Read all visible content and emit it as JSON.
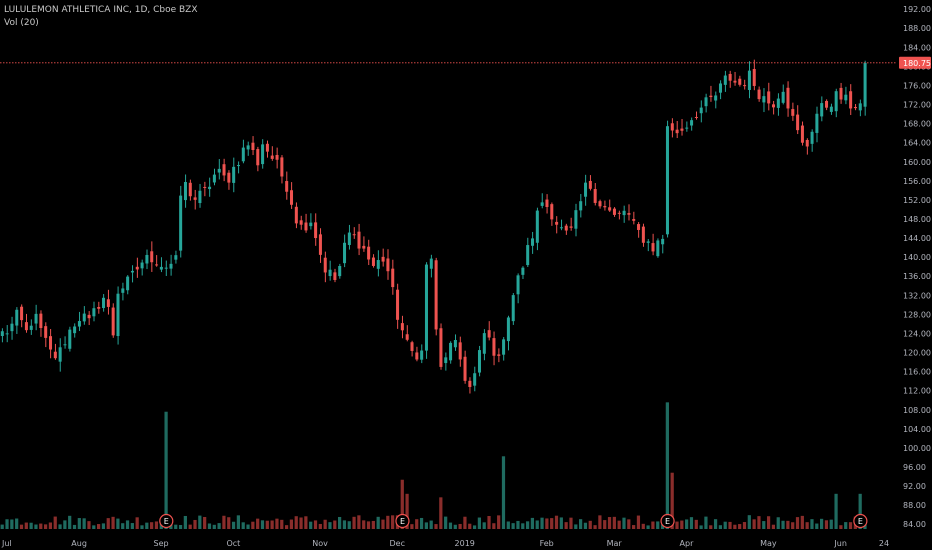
{
  "legend": {
    "symbol_line": "LULULEMON ATHLETICA INC, 1D, Cboe BZX",
    "volume_line": "Vol (20)"
  },
  "colors": {
    "background": "#000000",
    "up": "#26a69a",
    "down": "#ef5350",
    "up_volume": "#1f6b60",
    "down_volume": "#8a2d2b",
    "last_price_line": "#ef5350",
    "last_price_tag_bg": "#ef5350",
    "axis_text": "#b2b5be",
    "earnings_marker": "#ef5350"
  },
  "chart_data": {
    "type": "candlestick",
    "title": "LULULEMON ATHLETICA INC, 1D, Cboe BZX",
    "indicators": [
      "Vol (20)"
    ],
    "last_price": 180.75,
    "last_price_label": "180.75",
    "price_axis_ticks": [
      "84.00",
      "88.00",
      "92.00",
      "96.00",
      "100.00",
      "104.00",
      "108.00",
      "112.00",
      "116.00",
      "120.00",
      "124.00",
      "128.00",
      "132.00",
      "136.00",
      "140.00",
      "144.00",
      "148.00",
      "152.00",
      "156.00",
      "160.00",
      "164.00",
      "168.00",
      "172.00",
      "176.00",
      "180.00",
      "184.00",
      "188.00",
      "192.00"
    ],
    "ylim": [
      83,
      193.5
    ],
    "time_axis_labels": [
      "Jul",
      "Aug",
      "Sep",
      "Oct",
      "Nov",
      "Dec",
      "2019",
      "Feb",
      "Mar",
      "Apr",
      "May",
      "Jun",
      "24"
    ],
    "earnings_marker_label": "E",
    "grid": false,
    "segments": [
      {
        "from": 0,
        "to": 24,
        "open": 124,
        "close": 124,
        "points": [
          125,
          128,
          124,
          128,
          124,
          120,
          119,
          123,
          126,
          128,
          126,
          130,
          132
        ]
      },
      {
        "from": 24,
        "to": 37,
        "open": 133,
        "close": 139,
        "points": [
          135,
          139,
          140,
          138
        ]
      },
      {
        "from": 37,
        "to": 38,
        "open": 153,
        "close": 153,
        "points": []
      },
      {
        "from": 38,
        "to": 54,
        "open": 155,
        "close": 160,
        "points": [
          152,
          154,
          158,
          156,
          160,
          164
        ]
      },
      {
        "from": 54,
        "to": 88,
        "open": 164,
        "close": 120,
        "points": [
          160,
          155,
          146,
          148,
          138,
          135,
          145,
          143,
          138,
          140,
          128,
          120
        ]
      },
      {
        "from": 88,
        "to": 89,
        "open": 138,
        "close": 138,
        "points": []
      },
      {
        "from": 89,
        "to": 104,
        "open": 140,
        "close": 118,
        "points": [
          115,
          120,
          122,
          118,
          112,
          116,
          124,
          122
        ]
      },
      {
        "from": 104,
        "to": 138,
        "open": 124,
        "close": 144,
        "points": [
          132,
          138,
          144,
          152,
          150,
          146,
          144,
          150,
          156,
          152,
          150,
          148,
          150,
          146,
          144,
          142
        ]
      },
      {
        "from": 138,
        "to": 139,
        "open": 168,
        "close": 168,
        "points": []
      },
      {
        "from": 139,
        "to": 179,
        "open": 166,
        "close": 172,
        "points": [
          167,
          170,
          172,
          174,
          178,
          176,
          178,
          174,
          172,
          176,
          168,
          162,
          170,
          172,
          174,
          172
        ]
      },
      {
        "from": 179,
        "to": 180,
        "open": 179,
        "close": 181,
        "points": []
      }
    ],
    "segment_vol_seed": 7,
    "volumes": {
      "spikes": {
        "34": 100,
        "83": 42,
        "84": 30,
        "91": 27,
        "104": 62,
        "138": 108,
        "139": 48,
        "173": 30,
        "178": 30
      },
      "base_min": 3,
      "base_max": 12
    },
    "earnings_positions": [
      34,
      83,
      138,
      178
    ]
  }
}
